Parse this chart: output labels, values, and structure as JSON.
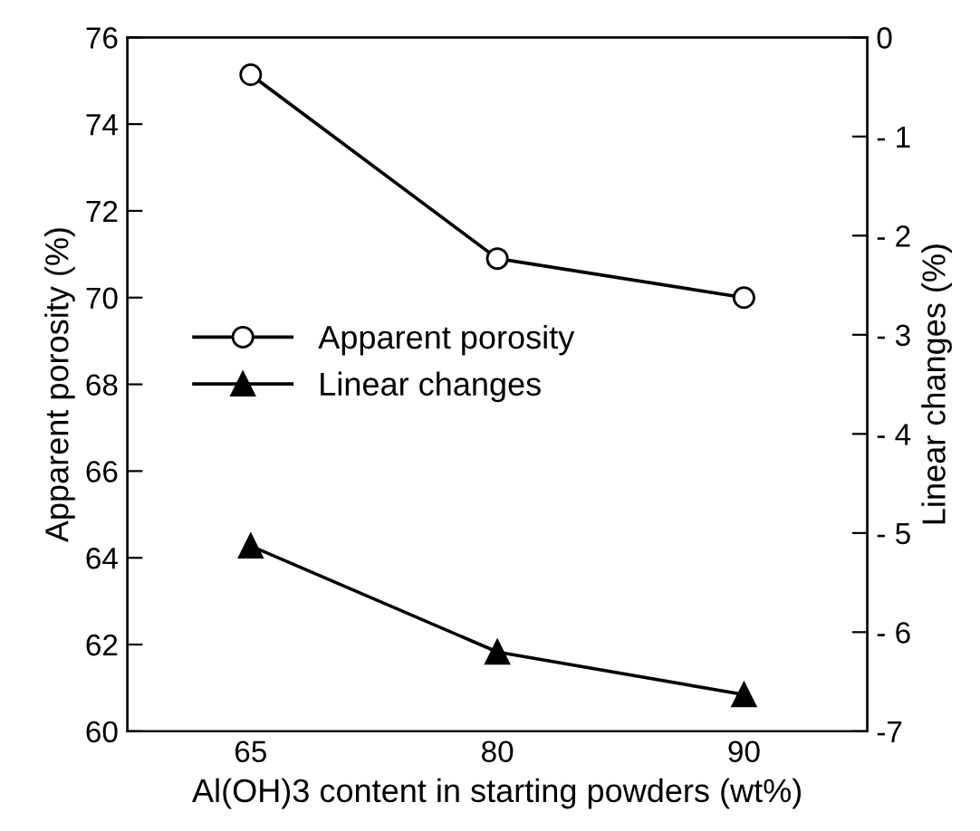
{
  "chart_data": {
    "type": "line",
    "xlabel": "Al(OH)3 content in starting powders (wt%)",
    "ylabel": "Apparent porosity (%)",
    "y2label": "Linear changes (%)",
    "categories": [
      "65",
      "80",
      "90"
    ],
    "series": [
      {
        "name": "Apparent porosity",
        "color": "#000000",
        "values": [
          75.14,
          70.9,
          70.0
        ],
        "marker": "circle"
      },
      {
        "name": "Linear changes",
        "color": "#000000",
        "values": [
          -5.13,
          -6.2,
          -6.63
        ],
        "marker": "triangle",
        "axis": "y2"
      }
    ],
    "ylim": [
      60,
      76
    ],
    "yticks": [
      60,
      62,
      64,
      66,
      68,
      70,
      72,
      74,
      76
    ],
    "y2lim": [
      -7,
      0
    ],
    "y2ticks": [
      {
        "value": -7,
        "label": "-7"
      },
      {
        "value": -6,
        "label": "- 6"
      },
      {
        "value": -5,
        "label": "- 5"
      },
      {
        "value": -4,
        "label": "- 4"
      },
      {
        "value": -3,
        "label": "- 3"
      },
      {
        "value": -2,
        "label": "- 2"
      },
      {
        "value": -1,
        "label": "- 1"
      },
      0
    ],
    "legend": "left",
    "grid": false,
    "line_style": "solid"
  }
}
